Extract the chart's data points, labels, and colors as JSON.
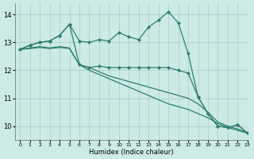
{
  "bg_color": "#cceae6",
  "grid_color": "#aacccc",
  "line_color": "#2e7d72",
  "xlabel": "Humidex (Indice chaleur)",
  "xlim": [
    -0.5,
    23
  ],
  "ylim": [
    9.5,
    14.4
  ],
  "yticks": [
    10,
    11,
    12,
    13,
    14
  ],
  "xticks": [
    0,
    1,
    2,
    3,
    4,
    5,
    6,
    7,
    8,
    9,
    10,
    11,
    12,
    13,
    14,
    15,
    16,
    17,
    18,
    19,
    20,
    21,
    22,
    23
  ],
  "series": [
    {
      "y": [
        12.75,
        12.9,
        13.0,
        13.05,
        13.25,
        13.65,
        13.05,
        13.0,
        13.1,
        13.05,
        13.35,
        13.2,
        13.1,
        13.55,
        13.8,
        14.1,
        13.7,
        12.6,
        11.05,
        10.45,
        10.0,
        9.95,
        10.05,
        9.75
      ],
      "marker": true,
      "lw": 0.9
    },
    {
      "y": [
        12.75,
        12.9,
        13.0,
        13.05,
        13.25,
        13.65,
        12.2,
        12.1,
        12.15,
        12.1,
        12.1,
        12.1,
        12.1,
        12.1,
        12.1,
        12.1,
        12.0,
        11.9,
        11.05,
        10.45,
        10.0,
        9.95,
        10.05,
        9.75
      ],
      "marker": true,
      "lw": 0.9
    },
    {
      "y": [
        12.75,
        12.8,
        12.85,
        12.8,
        12.85,
        12.8,
        12.2,
        12.1,
        11.95,
        11.8,
        11.7,
        11.6,
        11.5,
        11.4,
        11.3,
        11.2,
        11.1,
        11.0,
        10.8,
        10.5,
        10.15,
        10.0,
        9.9,
        9.75
      ],
      "marker": false,
      "lw": 0.9
    },
    {
      "y": [
        12.75,
        12.78,
        12.82,
        12.78,
        12.82,
        12.78,
        12.2,
        12.0,
        11.85,
        11.7,
        11.55,
        11.4,
        11.25,
        11.1,
        10.95,
        10.8,
        10.7,
        10.6,
        10.45,
        10.3,
        10.1,
        9.95,
        9.85,
        9.75
      ],
      "marker": false,
      "lw": 0.9
    }
  ]
}
